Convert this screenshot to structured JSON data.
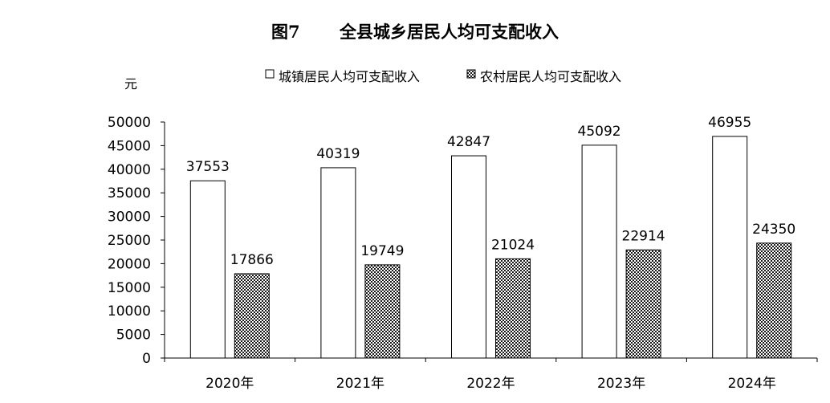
{
  "chart_data": {
    "type": "bar",
    "figure_label": "图7",
    "title": "全县城乡居民人均可支配收入",
    "ylabel": "元",
    "ylim": [
      0,
      50000
    ],
    "y_ticks": [
      0,
      5000,
      10000,
      15000,
      20000,
      25000,
      30000,
      35000,
      40000,
      45000,
      50000
    ],
    "categories": [
      "2020年",
      "2021年",
      "2022年",
      "2023年",
      "2024年"
    ],
    "legend_position": "top",
    "series": [
      {
        "name": "城镇居民人均可支配收入",
        "values": [
          37553,
          40319,
          42847,
          45092,
          46955
        ],
        "fill": "#ffffff"
      },
      {
        "name": "农村居民人均可支配收入",
        "values": [
          17866,
          19749,
          21024,
          22914,
          24350
        ],
        "fill": "hatched"
      }
    ],
    "data_labels": true,
    "grid": false
  }
}
